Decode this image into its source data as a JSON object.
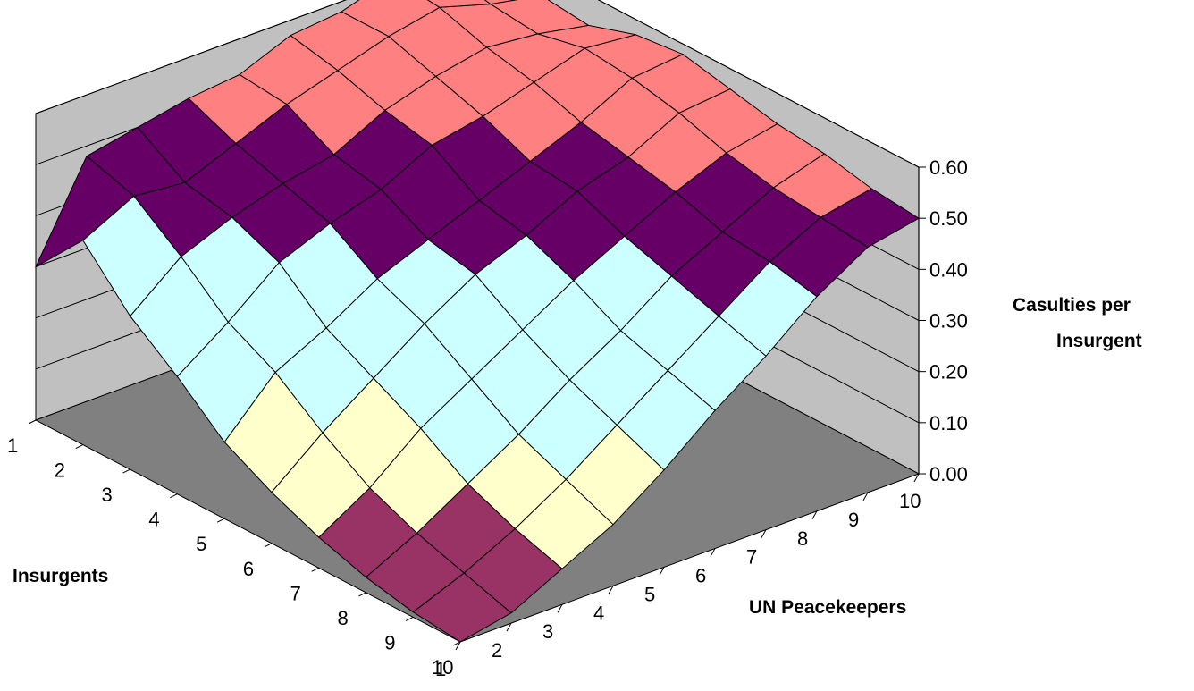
{
  "chart_data": {
    "type": "surface",
    "title": "",
    "zlabel_line1": "Casulties per",
    "zlabel_line2": "Insurgent",
    "xlabel": "UN Peacekeepers",
    "ylabel": "Insurgents",
    "x_ticks": [
      "1",
      "2",
      "3",
      "4",
      "5",
      "6",
      "7",
      "8",
      "9",
      "10"
    ],
    "y_ticks": [
      "1",
      "2",
      "3",
      "4",
      "5",
      "6",
      "7",
      "8",
      "9",
      "10"
    ],
    "z_ticks": [
      "0.00",
      "0.10",
      "0.20",
      "0.30",
      "0.40",
      "0.50",
      "0.60"
    ],
    "zlim": [
      0,
      0.6
    ],
    "x": [
      1,
      2,
      3,
      4,
      5,
      6,
      7,
      8,
      9,
      10
    ],
    "y": [
      1,
      2,
      3,
      4,
      5,
      6,
      7,
      8,
      9,
      10
    ],
    "z": [
      [
        0.3,
        0.48,
        0.5,
        0.52,
        0.53,
        0.57,
        0.58,
        0.61,
        0.59,
        0.58
      ],
      [
        0.4,
        0.45,
        0.44,
        0.48,
        0.52,
        0.55,
        0.58,
        0.6,
        0.57,
        0.55
      ],
      [
        0.3,
        0.38,
        0.42,
        0.45,
        0.47,
        0.52,
        0.55,
        0.57,
        0.56,
        0.54
      ],
      [
        0.23,
        0.3,
        0.38,
        0.42,
        0.45,
        0.5,
        0.52,
        0.55,
        0.58,
        0.57
      ],
      [
        0.15,
        0.25,
        0.3,
        0.36,
        0.4,
        0.44,
        0.48,
        0.52,
        0.57,
        0.58
      ],
      [
        0.1,
        0.18,
        0.25,
        0.32,
        0.38,
        0.42,
        0.47,
        0.5,
        0.55,
        0.56
      ],
      [
        0.06,
        0.12,
        0.2,
        0.26,
        0.32,
        0.38,
        0.43,
        0.48,
        0.52,
        0.54
      ],
      [
        0.03,
        0.08,
        0.14,
        0.2,
        0.27,
        0.33,
        0.4,
        0.45,
        0.5,
        0.53
      ],
      [
        0.01,
        0.05,
        0.1,
        0.16,
        0.23,
        0.3,
        0.37,
        0.44,
        0.49,
        0.51
      ],
      [
        0.0,
        0.02,
        0.07,
        0.12,
        0.19,
        0.27,
        0.34,
        0.42,
        0.48,
        0.5
      ]
    ],
    "bands": [
      {
        "range": "0.00-0.10",
        "color": "#993366"
      },
      {
        "range": "0.10-0.20",
        "color": "#FFFFCC"
      },
      {
        "range": "0.20-0.30",
        "color": "#CCFFFF"
      },
      {
        "range": "0.30-0.40",
        "color": "#CCFFFF"
      },
      {
        "range": "0.40-0.50",
        "color": "#660066"
      },
      {
        "range": "0.50-0.60",
        "color": "#FF8080"
      }
    ],
    "colors": {
      "back_wall": "#C0C0C0",
      "floor": "#808080",
      "gridline": "#000000"
    },
    "grid": true,
    "legend": "none"
  }
}
